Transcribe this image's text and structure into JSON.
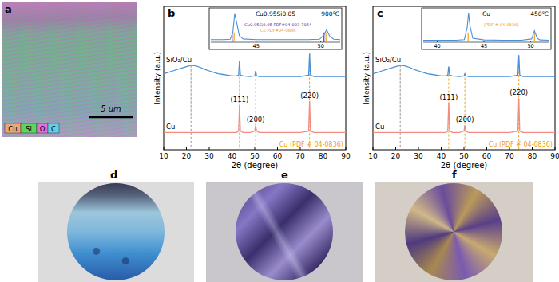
{
  "panels": [
    {
      "label": "a",
      "legend": [
        {
          "name": "Cu",
          "color": "#e8a878"
        },
        {
          "name": "Si",
          "color": "#5fd35f"
        },
        {
          "name": "O",
          "color": "#e070e0"
        },
        {
          "name": "C",
          "color": "#60d0e8"
        }
      ],
      "scale_bar": "5 um"
    },
    {
      "label": "d"
    },
    {
      "label": "e"
    },
    {
      "label": "f"
    }
  ],
  "chart_data": [
    {
      "type": "line",
      "panel": "b",
      "temperature": "900℃",
      "x_label": "2θ (degree)",
      "y_label": "Intensity (a.u.)",
      "xlim": [
        10,
        90
      ],
      "xticks": [
        10,
        20,
        30,
        40,
        50,
        60,
        70,
        80,
        90
      ],
      "ylim": [
        0,
        100
      ],
      "tick_labels": "x",
      "x": [
        10,
        12,
        14,
        16,
        18,
        20,
        22,
        24,
        26,
        28,
        30,
        32,
        34,
        36,
        38,
        40,
        42,
        42.9,
        43.3,
        43.7,
        45,
        48,
        50.0,
        50.4,
        50.8,
        52,
        55,
        60,
        65,
        70,
        73.7,
        74.1,
        74.5,
        76,
        80,
        85,
        90
      ],
      "series": [
        {
          "name": "SiO₂/Cu",
          "color": "#4a90d9",
          "values": [
            53,
            54,
            55,
            56,
            57,
            58,
            59,
            58.5,
            57.5,
            56,
            55,
            54,
            53,
            52.5,
            52,
            51.5,
            51.5,
            52,
            62,
            52,
            51.5,
            51,
            51.5,
            55,
            51.5,
            51,
            51,
            51,
            51,
            51,
            52,
            67,
            52,
            51,
            51,
            51,
            51
          ]
        },
        {
          "name": "Cu",
          "color": "#f28b82",
          "values": [
            12,
            12,
            12,
            12,
            12,
            12,
            12,
            12,
            12,
            12,
            12,
            12,
            12,
            12,
            12,
            12,
            12,
            13,
            31,
            13,
            12,
            12,
            13,
            17,
            13,
            12,
            12,
            12,
            12,
            12,
            13,
            34,
            13,
            12,
            12,
            12,
            12
          ]
        }
      ],
      "reference": {
        "name": "Cu (PDF # 04-0836)",
        "color": "#f0a020",
        "positions": [
          43.3,
          50.4,
          74.1
        ],
        "peak_labels": [
          "(111)",
          "(200)",
          "(220)"
        ]
      },
      "guide_lines": [
        22
      ],
      "inset": {
        "title": "Cu0.95Si0.05",
        "xlim": [
          41.5,
          51.5
        ],
        "xticks": [
          45,
          50
        ],
        "ylim": [
          0,
          100
        ],
        "color": "#4a90d9",
        "x": [
          41.5,
          42.5,
          43.0,
          43.2,
          43.35,
          43.5,
          43.7,
          44,
          45,
          47,
          49,
          49.9,
          50.2,
          50.45,
          50.7,
          51,
          51.5
        ],
        "values": [
          8,
          8,
          9,
          30,
          88,
          60,
          20,
          10,
          8,
          8,
          8,
          9,
          20,
          38,
          18,
          9,
          8
        ],
        "references": [
          {
            "name": "Cu0.95Si0.05 PDF#04-003-7054",
            "color": "#7030a0",
            "positions": [
              43.15,
              50.25
            ]
          },
          {
            "name": "Cu PDF#04-0836",
            "color": "#f0a020",
            "positions": [
              43.3,
              50.4
            ]
          }
        ]
      }
    },
    {
      "type": "line",
      "panel": "c",
      "temperature": "450℃",
      "x_label": "2θ (degree)",
      "y_label": "Intensity (a.u.)",
      "xlim": [
        10,
        90
      ],
      "xticks": [
        10,
        20,
        30,
        40,
        50,
        60,
        70,
        80,
        90
      ],
      "ylim": [
        0,
        100
      ],
      "tick_labels": "x",
      "x": [
        10,
        12,
        14,
        16,
        18,
        20,
        22,
        24,
        26,
        28,
        30,
        32,
        34,
        36,
        38,
        40,
        42,
        42.9,
        43.3,
        43.7,
        45,
        48,
        50.0,
        50.4,
        50.8,
        52,
        55,
        60,
        65,
        70,
        73.7,
        74.1,
        74.5,
        76,
        80,
        85,
        90
      ],
      "series": [
        {
          "name": "SiO₂/Cu",
          "color": "#4a90d9",
          "values": [
            53,
            54,
            55,
            56,
            57,
            58,
            59,
            58.5,
            57.5,
            56,
            55,
            54,
            53,
            52.5,
            52,
            51.5,
            51.5,
            52,
            58,
            52,
            51.5,
            51,
            51.5,
            53,
            51.5,
            51,
            51,
            51,
            51,
            51,
            52,
            66,
            52,
            51,
            51,
            51,
            51
          ]
        },
        {
          "name": "Cu",
          "color": "#f28b82",
          "values": [
            12,
            12,
            12,
            12,
            12,
            12,
            12,
            12,
            12,
            12,
            12,
            12,
            12,
            12,
            12,
            12,
            12,
            13,
            33,
            13,
            12,
            12,
            13,
            17,
            13,
            12,
            12,
            12,
            12,
            12,
            13,
            36,
            13,
            12,
            12,
            12,
            12
          ]
        }
      ],
      "reference": {
        "name": "Cu (PDF # 04-0836)",
        "color": "#f0a020",
        "positions": [
          43.3,
          50.4,
          74.1
        ],
        "peak_labels": [
          "(111)",
          "(200)",
          "(220)"
        ]
      },
      "guide_lines": [
        22
      ],
      "inset": {
        "title": "Cu",
        "xlim": [
          38.5,
          52
        ],
        "xticks": [
          40,
          45,
          50
        ],
        "ylim": [
          0,
          100
        ],
        "color": "#4a90d9",
        "x": [
          38.5,
          40,
          42,
          42.9,
          43.2,
          43.35,
          43.5,
          43.8,
          45,
          47,
          49,
          50.1,
          50.4,
          50.7,
          51,
          52
        ],
        "values": [
          6,
          6,
          6,
          8,
          45,
          90,
          50,
          12,
          7,
          6,
          6,
          10,
          35,
          12,
          7,
          6
        ],
        "references": [
          {
            "name": "(PDF # 04-0836)",
            "color": "#f0a020",
            "positions": [
              43.3,
              50.4
            ]
          }
        ]
      }
    }
  ]
}
